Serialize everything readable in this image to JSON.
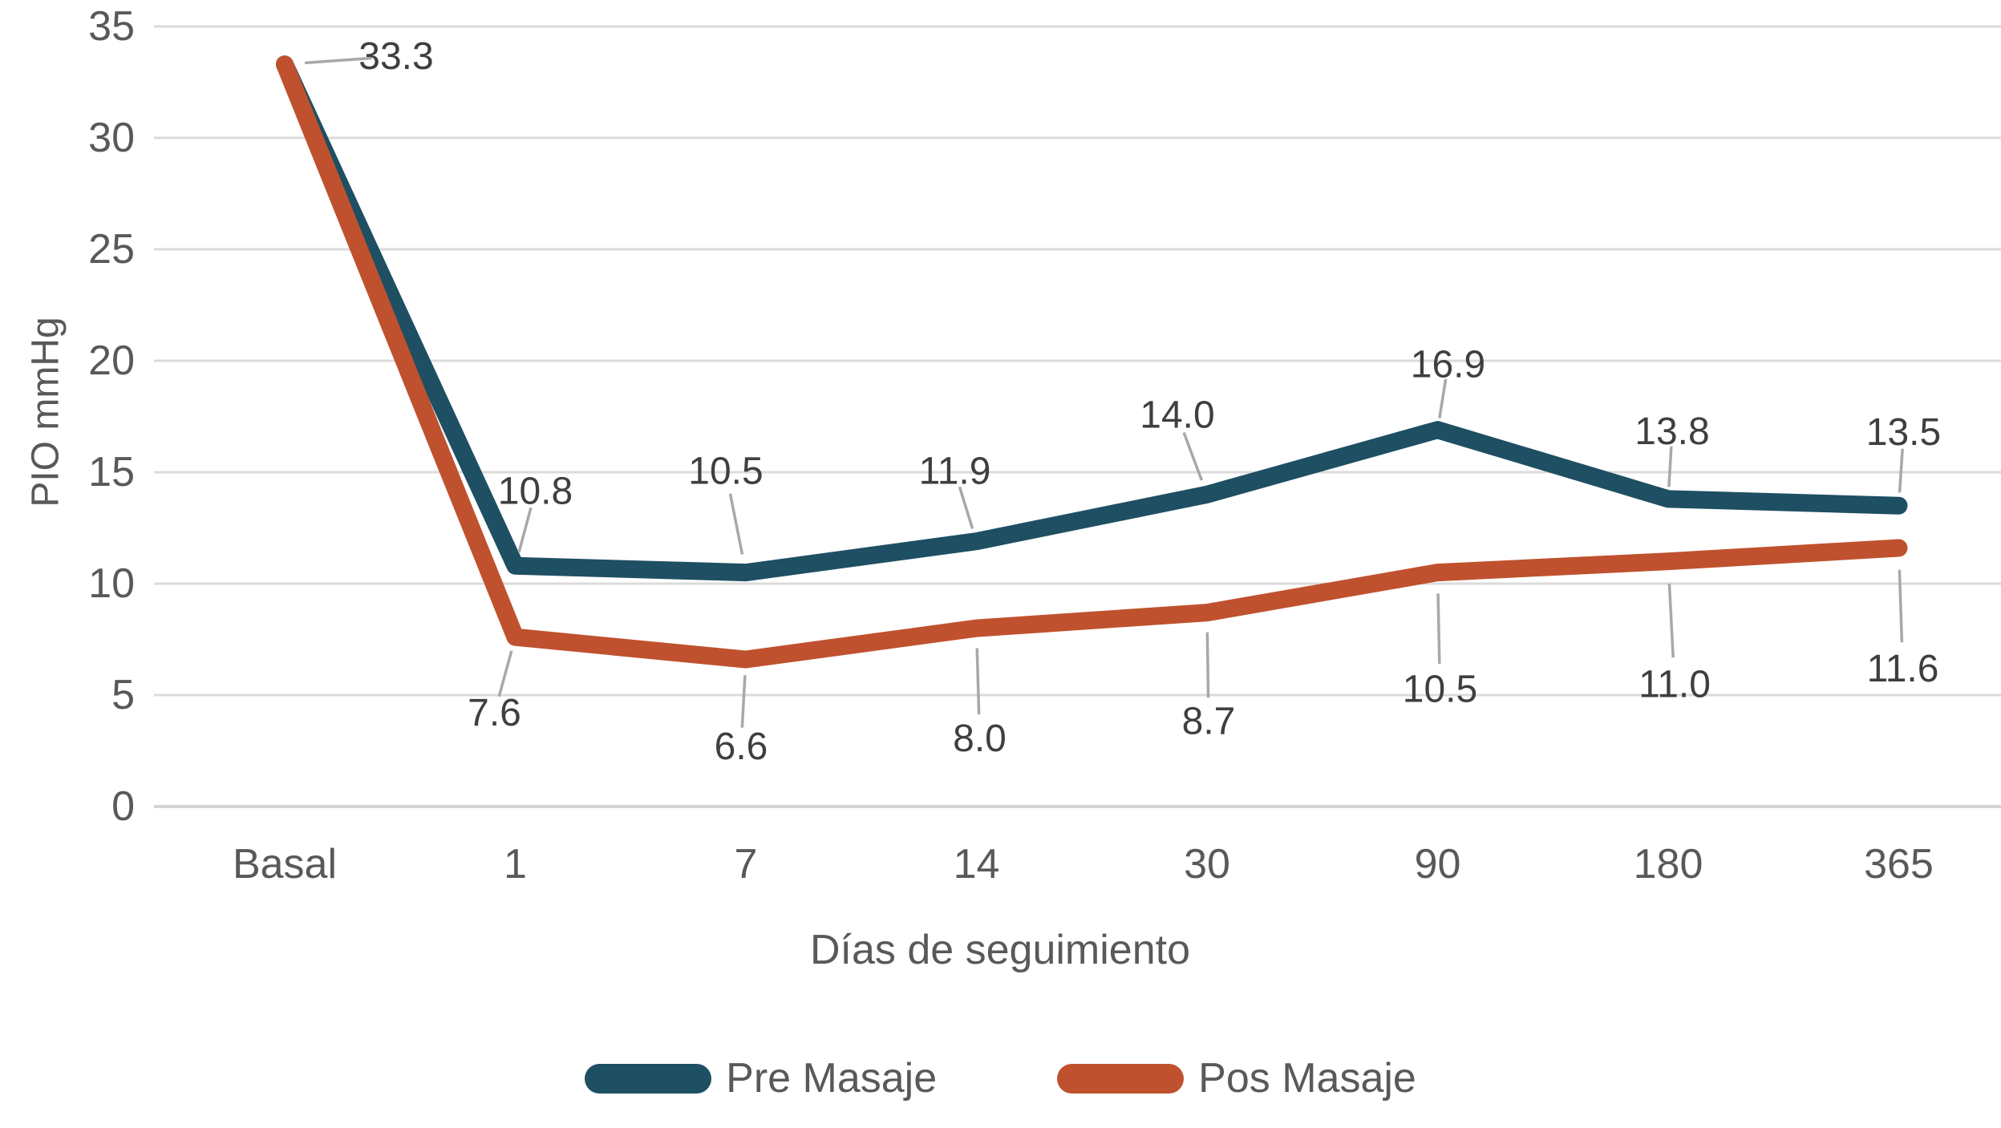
{
  "chart_data": {
    "type": "line",
    "title": "",
    "xlabel": "Días de seguimiento",
    "ylabel": "PIO mmHg",
    "categories": [
      "Basal",
      "1",
      "7",
      "14",
      "30",
      "90",
      "180",
      "365"
    ],
    "series": [
      {
        "name": "Pre Masaje",
        "color": "#1E4F63",
        "values": [
          33.3,
          10.8,
          10.5,
          11.9,
          14.0,
          16.9,
          13.8,
          13.5
        ],
        "point_labels": [
          "33.3",
          "10.8",
          "10.5",
          "11.9",
          "14.0",
          "16.9",
          "13.8",
          "13.5"
        ],
        "label_offsets": [
          [
            139,
            -10
          ],
          [
            25,
            -93
          ],
          [
            -25,
            -126
          ],
          [
            -27,
            -87
          ],
          [
            -37,
            -99
          ],
          [
            13,
            -81
          ],
          [
            5,
            -84
          ],
          [
            6,
            -91
          ]
        ]
      },
      {
        "name": "Pos Masaje",
        "color": "#C0512F",
        "values": [
          33.3,
          7.6,
          6.6,
          8.0,
          8.7,
          10.5,
          11.0,
          11.6
        ],
        "point_labels": [
          null,
          "7.6",
          "6.6",
          "8.0",
          "8.7",
          "10.5",
          "11.0",
          "11.6"
        ],
        "label_offsets": [
          null,
          [
            -26,
            95
          ],
          [
            -6,
            109
          ],
          [
            4,
            138
          ],
          [
            2,
            136
          ],
          [
            3,
            146
          ],
          [
            8,
            154
          ],
          [
            5,
            151
          ]
        ]
      }
    ],
    "y_axis": {
      "min": 0,
      "max": 35,
      "step": 5,
      "tick_labels": [
        "0",
        "5",
        "10",
        "15",
        "20",
        "25",
        "30",
        "35"
      ]
    },
    "grid": true,
    "legend_position": "bottom",
    "colors": {
      "gridline": "#DBDBDB",
      "zero_line": "#D3D3D3",
      "tick_text": "#595959",
      "data_label_text": "#3F3F3F",
      "leader_line": "#A8A8A8",
      "background": "#FFFFFF"
    }
  },
  "legend": {
    "items": [
      {
        "label": "Pre Masaje"
      },
      {
        "label": "Pos Masaje"
      }
    ]
  }
}
